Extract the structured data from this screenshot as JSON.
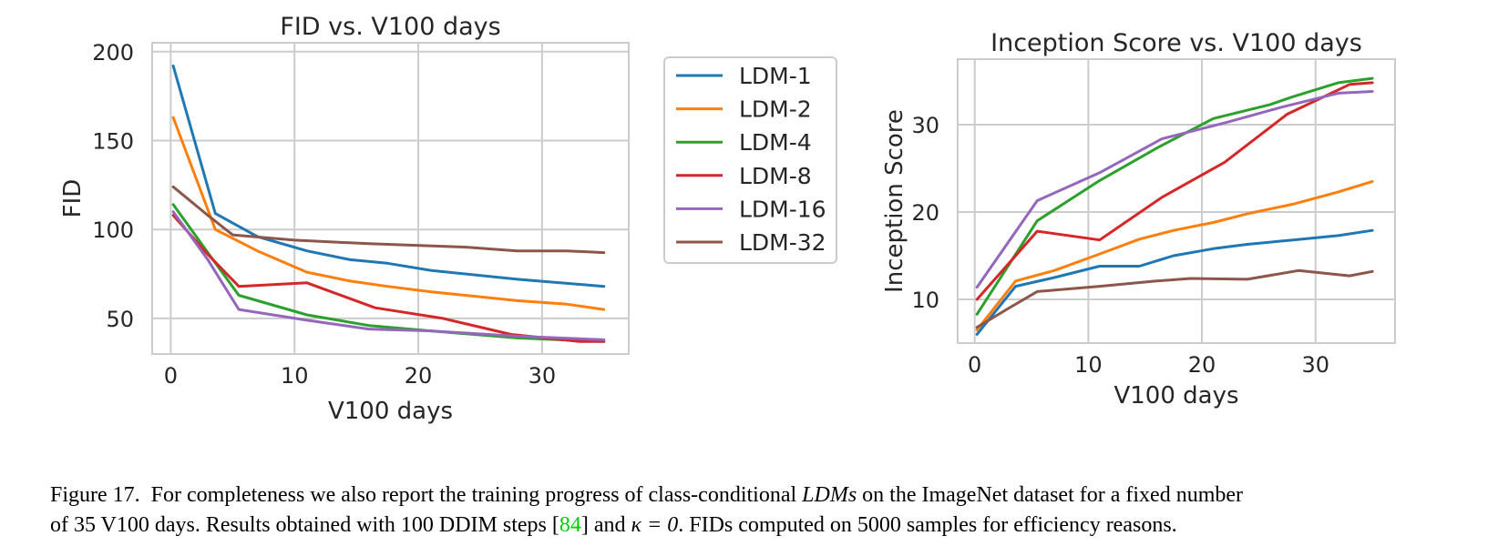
{
  "chart_data": [
    {
      "type": "line",
      "title": "FID vs. V100 days",
      "xlabel": "V100 days",
      "ylabel": "FID",
      "xlim": [
        -1.5,
        37
      ],
      "ylim": [
        30,
        205
      ],
      "xticks": [
        0,
        10,
        20,
        30
      ],
      "yticks": [
        50,
        100,
        150,
        200
      ],
      "grid": true,
      "legend": "outside-right",
      "series": [
        {
          "name": "LDM-1",
          "color": "#1f77b4",
          "x": [
            0.2,
            3.6,
            7,
            11,
            14.5,
            17.5,
            21,
            28,
            35
          ],
          "y": [
            192,
            109,
            96,
            88,
            83,
            81,
            77,
            72,
            68
          ]
        },
        {
          "name": "LDM-2",
          "color": "#ff7f0e",
          "x": [
            0.2,
            3.6,
            7,
            11,
            14.5,
            17.5,
            21,
            28,
            32,
            35
          ],
          "y": [
            163,
            100,
            88,
            76,
            71,
            68,
            65,
            60,
            58,
            55
          ]
        },
        {
          "name": "LDM-4",
          "color": "#2ca02c",
          "x": [
            0.2,
            3,
            5.5,
            11,
            16,
            21,
            28,
            35
          ],
          "y": [
            114,
            87,
            63,
            52,
            46,
            43,
            39,
            37
          ]
        },
        {
          "name": "LDM-8",
          "color": "#d62728",
          "x": [
            0.2,
            3,
            5.5,
            11,
            16.5,
            22,
            27.5,
            33,
            35
          ],
          "y": [
            108,
            86,
            68,
            70,
            56,
            50,
            41,
            37,
            37
          ]
        },
        {
          "name": "LDM-16",
          "color": "#9467bd",
          "x": [
            0.2,
            3,
            5.5,
            11,
            16,
            21,
            28,
            35
          ],
          "y": [
            110,
            83,
            55,
            49,
            44,
            43,
            40,
            38
          ]
        },
        {
          "name": "LDM-32",
          "color": "#8c564b",
          "x": [
            0.2,
            3,
            5,
            10,
            16,
            24,
            28,
            32,
            35
          ],
          "y": [
            124,
            108,
            97,
            94,
            92,
            90,
            88,
            88,
            87
          ]
        }
      ]
    },
    {
      "type": "line",
      "title": "Inception Score vs. V100 days",
      "xlabel": "V100 days",
      "ylabel": "Inception Score",
      "xlim": [
        -1.5,
        37
      ],
      "ylim": [
        5,
        37.5
      ],
      "xticks": [
        0,
        10,
        20,
        30
      ],
      "yticks": [
        10,
        20,
        30
      ],
      "grid": true,
      "legend": "none",
      "series": [
        {
          "name": "LDM-1",
          "color": "#1f77b4",
          "x": [
            0.2,
            3.6,
            7,
            11,
            14.5,
            17.5,
            21,
            24,
            28,
            32,
            35
          ],
          "y": [
            6,
            11.5,
            12.5,
            13.8,
            13.8,
            15,
            15.8,
            16.3,
            16.8,
            17.3,
            17.9
          ]
        },
        {
          "name": "LDM-2",
          "color": "#ff7f0e",
          "x": [
            0.2,
            3.6,
            7,
            11,
            14.5,
            17.5,
            21,
            24,
            28,
            32,
            35
          ],
          "y": [
            6.5,
            12.1,
            13.3,
            15.2,
            16.9,
            17.9,
            18.8,
            19.8,
            20.9,
            22.3,
            23.5
          ]
        },
        {
          "name": "LDM-4",
          "color": "#2ca02c",
          "x": [
            0.2,
            5.5,
            11,
            16,
            21,
            26,
            28,
            32,
            35
          ],
          "y": [
            8.3,
            19,
            23.6,
            27.3,
            30.7,
            32.3,
            33.2,
            34.8,
            35.3
          ]
        },
        {
          "name": "LDM-8",
          "color": "#d62728",
          "x": [
            0.2,
            5.5,
            11,
            16.5,
            22,
            27.5,
            33,
            35
          ],
          "y": [
            10,
            17.8,
            16.8,
            21.7,
            25.7,
            31.2,
            34.6,
            34.8
          ]
        },
        {
          "name": "LDM-16",
          "color": "#9467bd",
          "x": [
            0.2,
            5.5,
            11,
            16.5,
            22,
            27,
            32,
            35
          ],
          "y": [
            11.4,
            21.3,
            24.5,
            28.4,
            30.2,
            32.0,
            33.6,
            33.8
          ]
        },
        {
          "name": "LDM-32",
          "color": "#8c564b",
          "x": [
            0.2,
            3,
            5.5,
            11,
            16,
            19,
            24,
            28.5,
            33,
            35
          ],
          "y": [
            6.8,
            9,
            10.9,
            11.5,
            12.1,
            12.4,
            12.3,
            13.3,
            12.7,
            13.2
          ]
        }
      ]
    }
  ],
  "caption": {
    "label": "Figure 17.",
    "line1_a": "For completeness we also report the training progress of class-conditional ",
    "line1_em": "LDMs",
    "line1_b": " on the ImageNet dataset for a fixed number",
    "line2_a": "of 35 V100 days. Results obtained with 100 DDIM steps [",
    "line2_ref": "84",
    "line2_b": "] and ",
    "line2_kappa": "κ = 0",
    "line2_c": ". FIDs computed on 5000 samples for efficiency reasons."
  }
}
